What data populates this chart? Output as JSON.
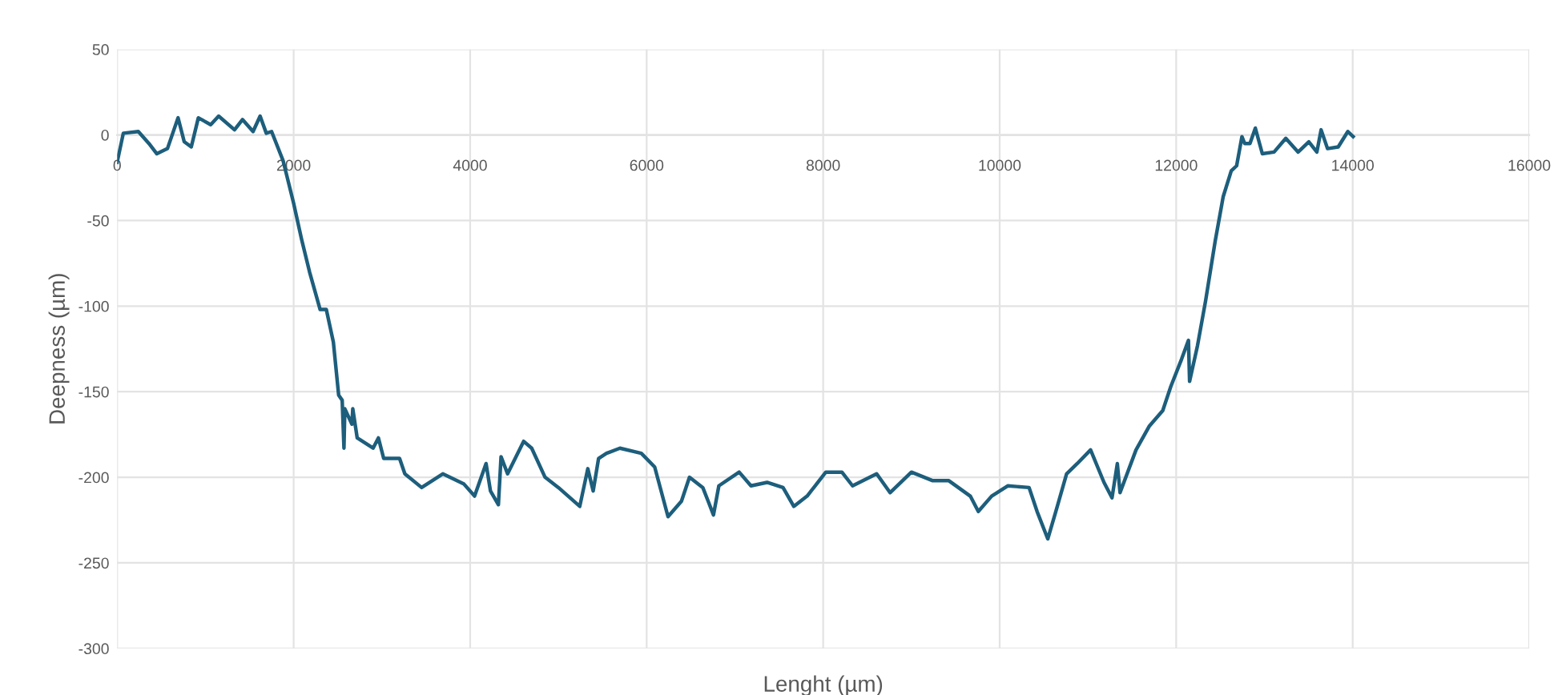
{
  "chart_data": {
    "type": "line",
    "xlabel": "Lenght (µm)",
    "ylabel": "Deepness (µm)",
    "xlim": [
      0,
      16000
    ],
    "ylim": [
      -300,
      50
    ],
    "xticks": [
      0,
      2000,
      4000,
      6000,
      8000,
      10000,
      12000,
      14000,
      16000
    ],
    "yticks": [
      -300,
      -250,
      -200,
      -150,
      -100,
      -50,
      0,
      50
    ],
    "grid": true,
    "series": [
      {
        "color": "#1d5e7c",
        "x": [
          0,
          70,
          240,
          360,
          450,
          570,
          690,
          760,
          840,
          920,
          1060,
          1150,
          1330,
          1420,
          1540,
          1620,
          1690,
          1750,
          1880,
          2000,
          2090,
          2180,
          2300,
          2370,
          2450,
          2510,
          2550,
          2570,
          2580,
          2660,
          2670,
          2720,
          2900,
          2960,
          3020,
          3200,
          3260,
          3450,
          3690,
          3930,
          4050,
          4180,
          4230,
          4320,
          4350,
          4424,
          4606,
          4697,
          4849,
          5000,
          5242,
          5333,
          5394,
          5455,
          5545,
          5697,
          5939,
          6091,
          6242,
          6394,
          6485,
          6636,
          6697,
          6757,
          6818,
          7048,
          7182,
          7364,
          7545,
          7667,
          7818,
          8030,
          8212,
          8333,
          8606,
          8758,
          9000,
          9242,
          9424,
          9667,
          9758,
          9909,
          10091,
          10333,
          10424,
          10545,
          10636,
          10758,
          10879,
          11030,
          11182,
          11273,
          11333,
          11364,
          11545,
          11697,
          11848,
          11939,
          12061,
          12139,
          12152,
          12242,
          12333,
          12442,
          12533,
          12624,
          12685,
          12745,
          12776,
          12836,
          12897,
          12976,
          13109,
          13242,
          13382,
          13503,
          13594,
          13642,
          13715,
          13836,
          13945,
          14005
        ],
        "values": [
          -16,
          1,
          2,
          -5,
          -11,
          -8,
          10,
          -4,
          -7,
          10,
          6,
          11,
          3,
          9,
          2,
          11,
          1,
          2,
          -15,
          -40,
          -61,
          -80,
          -102,
          -102,
          -121,
          -152,
          -155,
          -183,
          -160,
          -169,
          -160,
          -177,
          -183,
          -177,
          -189,
          -189,
          -198,
          -206,
          -198,
          -204,
          -211,
          -192,
          -208,
          -216,
          -188,
          -198,
          -179,
          -183,
          -200,
          -206,
          -217,
          -195,
          -208,
          -189,
          -186,
          -183,
          -186,
          -194,
          -223,
          -214,
          -200,
          -206,
          -214,
          -222,
          -205,
          -197,
          -205,
          -203,
          -206,
          -217,
          -211,
          -197,
          -197,
          -205,
          -198,
          -209,
          -197,
          -202,
          -202,
          -211,
          -220,
          -211,
          -205,
          -206,
          -220,
          -236,
          -220,
          -198,
          -192,
          -184,
          -203,
          -212,
          -192,
          -209,
          -184,
          -170,
          -161,
          -147,
          -131,
          -120,
          -144,
          -123,
          -97,
          -62,
          -36,
          -21,
          -18,
          -1,
          -5,
          -5,
          4,
          -11,
          -10,
          -2,
          -10,
          -4,
          -10,
          3,
          -8,
          -7,
          2,
          -1
        ]
      }
    ]
  }
}
